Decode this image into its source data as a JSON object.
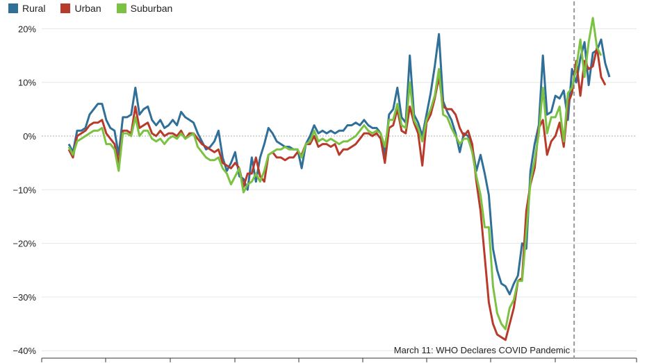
{
  "chart_data": {
    "type": "line",
    "title": "",
    "xlabel": "",
    "ylabel": "",
    "ylim": [
      -40,
      22
    ],
    "y_ticks": [
      20,
      10,
      0,
      -10,
      -20,
      -30,
      -40
    ],
    "y_tick_labels": [
      "20%",
      "10%",
      "0%",
      "−10%",
      "−20%",
      "−30%",
      "−40%"
    ],
    "legend_position": "top-left",
    "grid": true,
    "annotation": {
      "text": "March 11: WHO Declares COVID Pandemic",
      "x_index": 122
    },
    "series": [
      {
        "name": "Rural",
        "color": "#2f6f98",
        "values": [
          -1.5,
          -3.0,
          1.0,
          1.0,
          1.5,
          4.0,
          5.0,
          6.0,
          6.0,
          3.0,
          1.5,
          1.0,
          -3.5,
          3.5,
          3.5,
          4.0,
          9.0,
          4.0,
          5.0,
          5.5,
          3.0,
          2.0,
          3.0,
          1.5,
          2.0,
          3.0,
          2.0,
          4.5,
          3.5,
          3.0,
          2.5,
          0.5,
          -1.0,
          -2.5,
          -2.0,
          -1.0,
          1.0,
          -4.0,
          -6.5,
          -5.0,
          -3.0,
          -7.5,
          -8.0,
          -10.0,
          -4.0,
          -8.5,
          -4.0,
          -1.5,
          1.5,
          0.5,
          -1.0,
          -1.5,
          -2.0,
          -2.0,
          -2.5,
          -2.5,
          -6.0,
          -1.5,
          0.0,
          2.0,
          0.5,
          1.0,
          0.5,
          1.0,
          0.5,
          1.0,
          1.0,
          2.0,
          2.0,
          2.5,
          2.0,
          3.0,
          2.0,
          1.5,
          1.5,
          0.5,
          -3.5,
          4.0,
          5.0,
          9.0,
          3.5,
          2.5,
          15.0,
          4.0,
          2.5,
          0.0,
          4.0,
          8.0,
          13.0,
          19.0,
          6.5,
          4.5,
          3.0,
          0.5,
          -3.0,
          0.5,
          0.0,
          -2.0,
          -6.5,
          -3.5,
          -7.0,
          -11.0,
          -21.0,
          -25.0,
          -27.5,
          -28.0,
          -29.5,
          -27.5,
          -26.0,
          -20.0,
          -21.0,
          -6.5,
          -1.5,
          2.0,
          15.0,
          4.0,
          4.5,
          7.5,
          7.0,
          8.5,
          3.0,
          12.5,
          10.0,
          14.5,
          17.5,
          9.5,
          15.5,
          16.0,
          18.0,
          13.5,
          11.0
        ],
        "x_start_index": 0
      },
      {
        "name": "Urban",
        "color": "#b83a2b",
        "values": [
          -2.5,
          -4.0,
          0.0,
          0.5,
          1.0,
          2.0,
          2.5,
          2.5,
          3.0,
          0.5,
          -0.5,
          -1.5,
          -5.0,
          1.0,
          1.0,
          0.5,
          5.5,
          1.5,
          2.0,
          2.5,
          0.5,
          0.0,
          1.0,
          0.0,
          0.5,
          0.5,
          0.0,
          1.0,
          -0.5,
          0.5,
          0.5,
          -0.5,
          -1.5,
          -2.0,
          -2.5,
          -3.0,
          -2.5,
          -5.0,
          -5.5,
          -6.0,
          -5.0,
          -6.0,
          -9.5,
          -7.0,
          -7.0,
          -4.0,
          -7.5,
          -8.5,
          -3.5,
          -3.0,
          -4.0,
          -4.0,
          -4.5,
          -4.0,
          -4.0,
          -3.0,
          -3.5,
          -1.5,
          -1.5,
          0.0,
          -2.0,
          -1.5,
          -1.5,
          -2.0,
          -1.5,
          -3.5,
          -2.5,
          -2.5,
          -2.0,
          -1.5,
          -0.5,
          0.5,
          0.5,
          0.0,
          0.5,
          -0.5,
          -5.0,
          1.5,
          2.0,
          5.0,
          1.0,
          0.5,
          5.5,
          2.5,
          0.5,
          -5.5,
          2.5,
          4.0,
          7.0,
          11.0,
          5.5,
          5.0,
          5.0,
          4.0,
          1.5,
          0.0,
          1.0,
          -1.5,
          -8.5,
          -14.0,
          -22.5,
          -31.0,
          -35.0,
          -37.0,
          -37.5,
          -38.0,
          -35.0,
          -32.0,
          -27.0,
          -26.5,
          -14.0,
          -9.0,
          -6.0,
          1.5,
          3.0,
          -3.5,
          -1.0,
          0.0,
          2.5,
          -2.0,
          6.0,
          8.0,
          14.0,
          7.5,
          14.0,
          12.5,
          13.0,
          16.5,
          11.0,
          9.5
        ],
        "x_start_index": 0
      },
      {
        "name": "Suburban",
        "color": "#7cc242",
        "values": [
          -2.0,
          -3.5,
          -1.0,
          -0.5,
          0.0,
          0.5,
          1.0,
          1.0,
          1.5,
          -1.5,
          -1.5,
          -2.5,
          -6.5,
          0.5,
          0.5,
          0.0,
          3.5,
          0.0,
          1.0,
          1.0,
          -0.5,
          -1.0,
          -0.5,
          -1.5,
          -0.5,
          0.0,
          -0.5,
          0.5,
          -0.5,
          0.0,
          0.5,
          -2.0,
          -3.0,
          -4.0,
          -4.5,
          -4.5,
          -4.0,
          -6.0,
          -7.0,
          -9.0,
          -7.5,
          -6.0,
          -10.5,
          -9.0,
          -8.5,
          -7.0,
          -8.5,
          -6.5,
          -3.5,
          -3.0,
          -2.5,
          -2.5,
          -2.0,
          -2.5,
          -2.5,
          -2.5,
          -4.0,
          -1.5,
          -1.0,
          1.0,
          -1.0,
          -0.5,
          -1.0,
          -0.5,
          -1.0,
          -1.5,
          -1.0,
          -1.0,
          -0.5,
          0.0,
          1.0,
          2.0,
          1.0,
          0.5,
          1.0,
          0.5,
          -2.0,
          3.0,
          3.0,
          6.0,
          2.0,
          1.5,
          10.0,
          3.0,
          1.5,
          -1.0,
          3.0,
          5.0,
          7.5,
          12.5,
          4.0,
          3.5,
          1.5,
          0.0,
          -1.5,
          -0.5,
          -0.5,
          -3.0,
          -7.5,
          -11.0,
          -17.0,
          -17.0,
          -28.0,
          -33.0,
          -35.0,
          -36.0,
          -32.0,
          -30.5,
          -27.0,
          -27.0,
          -18.0,
          -8.5,
          -4.5,
          0.5,
          9.0,
          0.5,
          3.5,
          3.5,
          5.5,
          -1.0,
          8.0,
          9.0,
          12.5,
          18.0,
          11.0,
          17.5,
          22.0,
          16.5,
          15.0
        ],
        "x_start_index": 0
      }
    ]
  }
}
